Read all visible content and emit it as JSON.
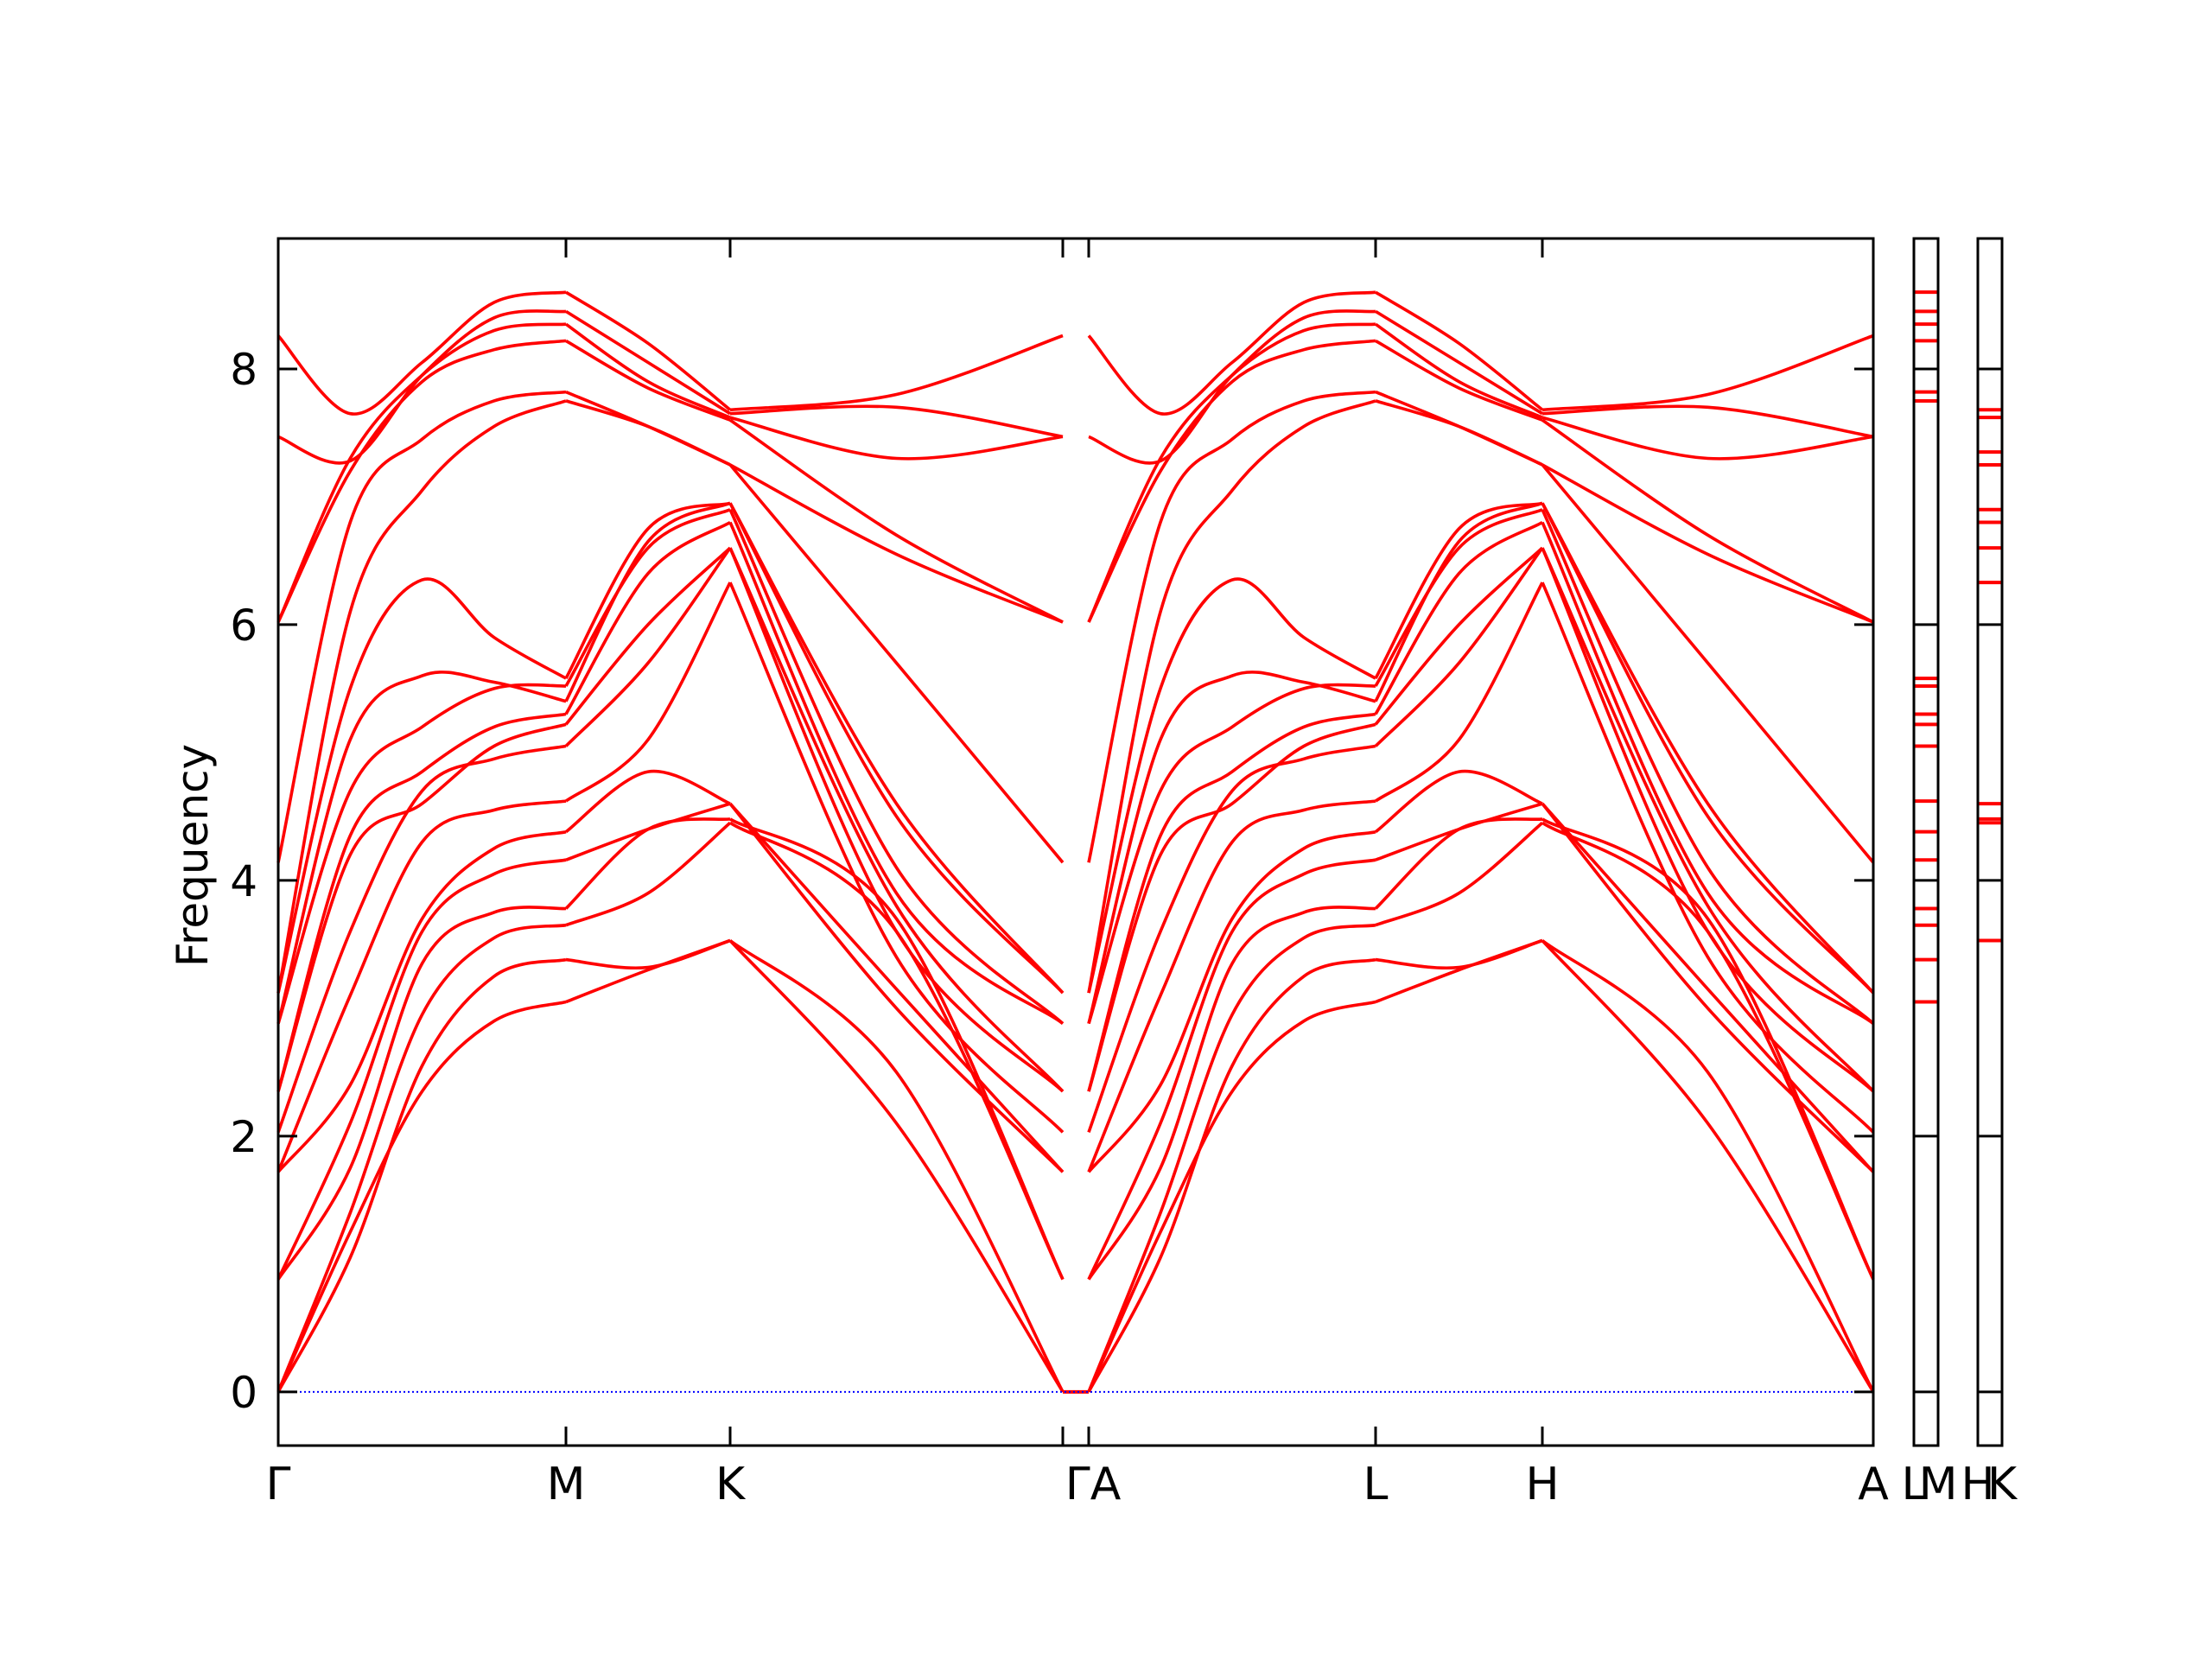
{
  "chart_data": {
    "type": "line",
    "title": "",
    "ylabel": "Frequency",
    "xlabel": "",
    "ylim": [
      -0.42,
      9.02
    ],
    "yticks": [
      0,
      2,
      4,
      6,
      8
    ],
    "grid": false,
    "line_color": "#ff0000",
    "zero_line_color": "#0000ff",
    "path_labels": [
      "Γ",
      "M",
      "K",
      "ΓA",
      "L",
      "H",
      "A",
      "L",
      "M",
      "H",
      "K"
    ],
    "segments": [
      {
        "from": "Γ",
        "to": "M",
        "bands": [
          [
            0.0,
            1.25,
            2.35,
            2.9,
            3.05
          ],
          [
            0.0,
            1.05,
            2.55,
            3.25,
            3.38
          ],
          [
            0.0,
            1.4,
            2.95,
            3.55,
            3.65
          ],
          [
            0.88,
            1.75,
            3.35,
            3.75,
            3.78
          ],
          [
            0.88,
            2.1,
            3.6,
            4.05,
            4.16
          ],
          [
            1.72,
            2.4,
            3.7,
            4.25,
            4.38
          ],
          [
            1.72,
            3.1,
            4.3,
            4.55,
            4.62
          ],
          [
            2.03,
            3.6,
            4.7,
            4.95,
            5.05
          ],
          [
            2.35,
            4.2,
            4.6,
            5.05,
            5.22
          ],
          [
            2.35,
            4.35,
            4.85,
            5.2,
            5.3
          ],
          [
            2.88,
            4.7,
            5.2,
            5.5,
            5.52
          ],
          [
            2.88,
            5.1,
            5.6,
            5.55,
            5.4
          ],
          [
            3.12,
            5.5,
            6.35,
            5.9,
            5.58
          ],
          [
            3.12,
            6.1,
            7.05,
            7.55,
            7.75
          ],
          [
            4.14,
            6.8,
            7.45,
            7.75,
            7.82
          ],
          [
            6.02,
            7.2,
            7.9,
            8.15,
            8.22
          ],
          [
            6.02,
            7.3,
            7.95,
            8.3,
            8.35
          ],
          [
            7.47,
            7.28,
            7.95,
            8.4,
            8.45
          ],
          [
            8.26,
            7.65,
            8.05,
            8.52,
            8.6
          ]
        ]
      },
      {
        "from": "M",
        "to": "K",
        "bands": [
          [
            3.05,
            3.3,
            3.53
          ],
          [
            3.38,
            3.32,
            3.53
          ],
          [
            3.65,
            3.9,
            4.45
          ],
          [
            3.78,
            4.4,
            4.48
          ],
          [
            4.16,
            4.4,
            4.6
          ],
          [
            4.38,
            4.85,
            4.6
          ],
          [
            4.62,
            5.1,
            6.33
          ],
          [
            5.05,
            5.7,
            6.6
          ],
          [
            5.22,
            6.0,
            6.6
          ],
          [
            5.3,
            6.4,
            6.8
          ],
          [
            5.52,
            6.6,
            6.9
          ],
          [
            5.4,
            6.65,
            6.95
          ],
          [
            5.58,
            6.75,
            6.95
          ],
          [
            7.75,
            7.55,
            7.25
          ],
          [
            7.82,
            7.55,
            7.25
          ],
          [
            8.22,
            7.85,
            7.6
          ],
          [
            8.35,
            7.9,
            7.62
          ],
          [
            8.45,
            8.05,
            7.65
          ],
          [
            8.6,
            8.2,
            7.68
          ]
        ]
      },
      {
        "from": "K",
        "to": "ΓA",
        "bands": [
          [
            3.53,
            2.1,
            0.0
          ],
          [
            3.53,
            2.5,
            0.0
          ],
          [
            4.45,
            3.6,
            0.88
          ],
          [
            4.48,
            3.7,
            0.88
          ],
          [
            4.6,
            3.0,
            1.72
          ],
          [
            4.6,
            3.15,
            1.72
          ],
          [
            6.33,
            3.4,
            2.03
          ],
          [
            6.6,
            3.6,
            2.35
          ],
          [
            6.6,
            3.8,
            2.35
          ],
          [
            6.8,
            3.9,
            2.88
          ],
          [
            6.9,
            4.1,
            2.88
          ],
          [
            6.95,
            4.5,
            3.12
          ],
          [
            6.95,
            4.6,
            3.12
          ],
          [
            7.25,
            5.7,
            4.14
          ],
          [
            7.25,
            6.55,
            6.02
          ],
          [
            7.6,
            6.7,
            6.02
          ],
          [
            7.62,
            7.3,
            7.47
          ],
          [
            7.65,
            7.7,
            7.47
          ],
          [
            7.68,
            7.8,
            8.26
          ]
        ]
      },
      {
        "from": "ΓA",
        "to": "L",
        "bands": [
          [
            0.0,
            1.25,
            2.35,
            2.9,
            3.05
          ],
          [
            0.0,
            1.05,
            2.55,
            3.25,
            3.38
          ],
          [
            0.0,
            1.4,
            2.95,
            3.55,
            3.65
          ],
          [
            0.88,
            1.75,
            3.35,
            3.75,
            3.78
          ],
          [
            0.88,
            2.1,
            3.6,
            4.05,
            4.16
          ],
          [
            1.72,
            2.4,
            3.7,
            4.25,
            4.38
          ],
          [
            1.72,
            3.1,
            4.3,
            4.55,
            4.62
          ],
          [
            2.03,
            3.6,
            4.7,
            4.95,
            5.05
          ],
          [
            2.35,
            4.2,
            4.6,
            5.05,
            5.22
          ],
          [
            2.35,
            4.35,
            4.85,
            5.2,
            5.3
          ],
          [
            2.88,
            4.7,
            5.2,
            5.5,
            5.52
          ],
          [
            2.88,
            5.1,
            5.6,
            5.55,
            5.4
          ],
          [
            3.12,
            5.5,
            6.35,
            5.9,
            5.58
          ],
          [
            3.12,
            6.1,
            7.05,
            7.55,
            7.75
          ],
          [
            4.14,
            6.8,
            7.45,
            7.75,
            7.82
          ],
          [
            6.02,
            7.2,
            7.9,
            8.15,
            8.22
          ],
          [
            6.02,
            7.3,
            7.95,
            8.3,
            8.35
          ],
          [
            7.47,
            7.28,
            7.95,
            8.4,
            8.45
          ],
          [
            8.26,
            7.65,
            8.05,
            8.52,
            8.6
          ]
        ]
      },
      {
        "from": "L",
        "to": "H",
        "bands": [
          [
            3.05,
            3.3,
            3.53
          ],
          [
            3.38,
            3.32,
            3.53
          ],
          [
            3.65,
            3.9,
            4.45
          ],
          [
            3.78,
            4.4,
            4.48
          ],
          [
            4.16,
            4.4,
            4.6
          ],
          [
            4.38,
            4.85,
            4.6
          ],
          [
            4.62,
            5.1,
            6.33
          ],
          [
            5.05,
            5.7,
            6.6
          ],
          [
            5.22,
            6.0,
            6.6
          ],
          [
            5.3,
            6.4,
            6.8
          ],
          [
            5.52,
            6.6,
            6.9
          ],
          [
            5.4,
            6.65,
            6.95
          ],
          [
            5.58,
            6.75,
            6.95
          ],
          [
            7.75,
            7.55,
            7.25
          ],
          [
            7.82,
            7.55,
            7.25
          ],
          [
            8.22,
            7.85,
            7.6
          ],
          [
            8.35,
            7.9,
            7.62
          ],
          [
            8.45,
            8.05,
            7.65
          ],
          [
            8.6,
            8.2,
            7.68
          ]
        ]
      },
      {
        "from": "H",
        "to": "A",
        "bands": [
          [
            3.53,
            2.1,
            0.0
          ],
          [
            3.53,
            2.5,
            0.0
          ],
          [
            4.45,
            3.6,
            0.88
          ],
          [
            4.48,
            3.7,
            0.88
          ],
          [
            4.6,
            3.0,
            1.72
          ],
          [
            4.6,
            3.15,
            1.72
          ],
          [
            6.33,
            3.4,
            2.03
          ],
          [
            6.6,
            3.6,
            2.35
          ],
          [
            6.6,
            3.8,
            2.35
          ],
          [
            6.8,
            3.9,
            2.88
          ],
          [
            6.9,
            4.1,
            2.88
          ],
          [
            6.95,
            4.5,
            3.12
          ],
          [
            6.95,
            4.6,
            3.12
          ],
          [
            7.25,
            5.7,
            4.14
          ],
          [
            7.25,
            6.55,
            6.02
          ],
          [
            7.6,
            6.7,
            6.02
          ],
          [
            7.62,
            7.3,
            7.47
          ],
          [
            7.65,
            7.7,
            7.47
          ],
          [
            7.68,
            7.8,
            8.26
          ]
        ]
      }
    ],
    "side_panels": [
      {
        "labels": [
          "L",
          "M"
        ],
        "levels": [
          3.05,
          3.38,
          3.65,
          3.78,
          4.16,
          4.38,
          4.62,
          5.05,
          5.22,
          5.3,
          5.52,
          5.58,
          7.75,
          7.82,
          8.22,
          8.35,
          8.45,
          8.6
        ]
      },
      {
        "labels": [
          "H",
          "K"
        ],
        "levels": [
          3.53,
          4.45,
          4.48,
          4.6,
          6.33,
          6.6,
          6.8,
          6.9,
          7.25,
          7.35,
          7.62,
          7.68
        ]
      }
    ]
  }
}
